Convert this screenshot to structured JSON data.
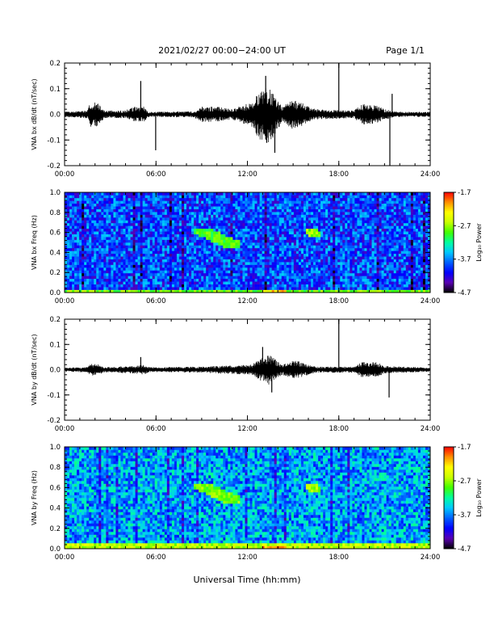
{
  "header": {
    "date_range": "2021/02/27  00:00−24:00 UT",
    "page": "Page 1/1"
  },
  "xlabel": "Universal Time (hh:mm)",
  "colors": {
    "trace": "#000000",
    "spectrogram_colormap": [
      "#000000",
      "#5a00b4",
      "#0000ff",
      "#0060ff",
      "#00c8ff",
      "#00ffa0",
      "#40ff00",
      "#c8ff00",
      "#ffff00",
      "#ff9000",
      "#ff0000"
    ]
  },
  "chart_data": [
    {
      "type": "line",
      "name": "bx-waveform",
      "ylabel": "VNA bx dB/dt (nT/sec)",
      "xlim": [
        "00:00",
        "24:00"
      ],
      "xticks": [
        "00:00",
        "06:00",
        "12:00",
        "18:00",
        "24:00"
      ],
      "ylim": [
        -0.2,
        0.2
      ],
      "yticks": [
        "-0.2",
        "-0.1",
        "0.0",
        "0.1",
        "0.2"
      ],
      "baseline_noise": 0.01,
      "envelope": [
        {
          "t": 0.0,
          "pos": 0.01,
          "neg": 0.01
        },
        {
          "t": 1.5,
          "pos": 0.015,
          "neg": 0.015
        },
        {
          "t": 1.7,
          "pos": 0.05,
          "neg": 0.05
        },
        {
          "t": 2.3,
          "pos": 0.045,
          "neg": 0.045
        },
        {
          "t": 2.6,
          "pos": 0.015,
          "neg": 0.015
        },
        {
          "t": 4.0,
          "pos": 0.015,
          "neg": 0.015
        },
        {
          "t": 4.5,
          "pos": 0.03,
          "neg": 0.03
        },
        {
          "t": 5.2,
          "pos": 0.03,
          "neg": 0.03
        },
        {
          "t": 5.5,
          "pos": 0.01,
          "neg": 0.01
        },
        {
          "t": 8.5,
          "pos": 0.012,
          "neg": 0.012
        },
        {
          "t": 9.0,
          "pos": 0.03,
          "neg": 0.03
        },
        {
          "t": 10.0,
          "pos": 0.03,
          "neg": 0.03
        },
        {
          "t": 11.0,
          "pos": 0.02,
          "neg": 0.02
        },
        {
          "t": 12.3,
          "pos": 0.05,
          "neg": 0.05
        },
        {
          "t": 12.8,
          "pos": 0.09,
          "neg": 0.1
        },
        {
          "t": 13.4,
          "pos": 0.11,
          "neg": 0.12
        },
        {
          "t": 13.9,
          "pos": 0.06,
          "neg": 0.07
        },
        {
          "t": 14.3,
          "pos": 0.03,
          "neg": 0.03
        },
        {
          "t": 15.0,
          "pos": 0.06,
          "neg": 0.06
        },
        {
          "t": 15.8,
          "pos": 0.04,
          "neg": 0.04
        },
        {
          "t": 16.5,
          "pos": 0.02,
          "neg": 0.02
        },
        {
          "t": 19.0,
          "pos": 0.015,
          "neg": 0.015
        },
        {
          "t": 19.5,
          "pos": 0.04,
          "neg": 0.04
        },
        {
          "t": 20.5,
          "pos": 0.035,
          "neg": 0.035
        },
        {
          "t": 21.0,
          "pos": 0.02,
          "neg": 0.02
        },
        {
          "t": 22.0,
          "pos": 0.01,
          "neg": 0.01
        },
        {
          "t": 24.0,
          "pos": 0.01,
          "neg": 0.01
        }
      ],
      "spikes": [
        {
          "t": 5.0,
          "value": 0.13
        },
        {
          "t": 5.98,
          "value": -0.14
        },
        {
          "t": 13.2,
          "value": 0.15
        },
        {
          "t": 13.8,
          "value": -0.15
        },
        {
          "t": 18.0,
          "value": 0.22
        },
        {
          "t": 21.35,
          "value": -0.2
        },
        {
          "t": 21.5,
          "value": 0.08
        }
      ]
    },
    {
      "type": "heatmap",
      "name": "bx-spectrogram",
      "ylabel": "VNA bx Freq (Hz)",
      "xlim": [
        "00:00",
        "24:00"
      ],
      "xticks": [
        "00:00",
        "06:00",
        "12:00",
        "18:00",
        "24:00"
      ],
      "ylim": [
        0.0,
        1.0
      ],
      "yticks": [
        "0.0",
        "0.2",
        "0.4",
        "0.6",
        "0.8",
        "1.0"
      ],
      "colorbar": {
        "label": "Log₁₀ Power",
        "range": [
          -4.7,
          -1.7
        ],
        "ticks": [
          "-1.7",
          "-2.7",
          "-3.7",
          "-4.7"
        ]
      },
      "background_level": -3.9,
      "features": [
        {
          "t0": 0.0,
          "t1": 24.0,
          "f0": 0.0,
          "f1": 0.04,
          "level": -2.8
        },
        {
          "t0": 13.0,
          "t1": 14.5,
          "f0": 0.0,
          "f1": 0.03,
          "level": -2.2
        },
        {
          "t0": 8.5,
          "t1": 11.5,
          "f0": 0.45,
          "f1": 0.65,
          "level": -2.9
        },
        {
          "t0": 15.8,
          "t1": 16.8,
          "f0": 0.55,
          "f1": 0.65,
          "level": -2.7
        }
      ]
    },
    {
      "type": "line",
      "name": "by-waveform",
      "ylabel": "VNA by dB/dt (nT/sec)",
      "xlim": [
        "00:00",
        "24:00"
      ],
      "xticks": [
        "00:00",
        "06:00",
        "12:00",
        "18:00",
        "24:00"
      ],
      "ylim": [
        -0.2,
        0.2
      ],
      "yticks": [
        "-0.2",
        "-0.1",
        "0.0",
        "0.1",
        "0.2"
      ],
      "baseline_noise": 0.008,
      "envelope": [
        {
          "t": 0.0,
          "pos": 0.008,
          "neg": 0.008
        },
        {
          "t": 1.5,
          "pos": 0.01,
          "neg": 0.01
        },
        {
          "t": 1.7,
          "pos": 0.025,
          "neg": 0.025
        },
        {
          "t": 2.3,
          "pos": 0.02,
          "neg": 0.02
        },
        {
          "t": 2.6,
          "pos": 0.01,
          "neg": 0.01
        },
        {
          "t": 4.5,
          "pos": 0.015,
          "neg": 0.015
        },
        {
          "t": 5.2,
          "pos": 0.02,
          "neg": 0.02
        },
        {
          "t": 5.5,
          "pos": 0.01,
          "neg": 0.01
        },
        {
          "t": 9.0,
          "pos": 0.012,
          "neg": 0.012
        },
        {
          "t": 10.0,
          "pos": 0.015,
          "neg": 0.015
        },
        {
          "t": 12.3,
          "pos": 0.02,
          "neg": 0.02
        },
        {
          "t": 12.8,
          "pos": 0.045,
          "neg": 0.045
        },
        {
          "t": 13.4,
          "pos": 0.06,
          "neg": 0.06
        },
        {
          "t": 13.9,
          "pos": 0.04,
          "neg": 0.04
        },
        {
          "t": 14.3,
          "pos": 0.02,
          "neg": 0.02
        },
        {
          "t": 15.0,
          "pos": 0.04,
          "neg": 0.04
        },
        {
          "t": 15.8,
          "pos": 0.025,
          "neg": 0.025
        },
        {
          "t": 16.5,
          "pos": 0.012,
          "neg": 0.012
        },
        {
          "t": 19.0,
          "pos": 0.012,
          "neg": 0.012
        },
        {
          "t": 19.5,
          "pos": 0.03,
          "neg": 0.03
        },
        {
          "t": 20.5,
          "pos": 0.03,
          "neg": 0.03
        },
        {
          "t": 21.0,
          "pos": 0.015,
          "neg": 0.015
        },
        {
          "t": 24.0,
          "pos": 0.008,
          "neg": 0.008
        }
      ],
      "spikes": [
        {
          "t": 5.0,
          "value": 0.05
        },
        {
          "t": 13.0,
          "value": 0.09
        },
        {
          "t": 13.6,
          "value": -0.09
        },
        {
          "t": 18.0,
          "value": 0.2
        },
        {
          "t": 21.3,
          "value": -0.11
        }
      ]
    },
    {
      "type": "heatmap",
      "name": "by-spectrogram",
      "ylabel": "VNA by Freq (Hz)",
      "xlim": [
        "00:00",
        "24:00"
      ],
      "xticks": [
        "00:00",
        "06:00",
        "12:00",
        "18:00",
        "24:00"
      ],
      "ylim": [
        0.0,
        1.0
      ],
      "yticks": [
        "0.0",
        "0.2",
        "0.4",
        "0.6",
        "0.8",
        "1.0"
      ],
      "colorbar": {
        "label": "Log₁₀ Power",
        "range": [
          -4.7,
          -1.7
        ],
        "ticks": [
          "-1.7",
          "-2.7",
          "-3.7",
          "-4.7"
        ]
      },
      "background_level": -3.6,
      "features": [
        {
          "t0": 0.0,
          "t1": 24.0,
          "f0": 0.0,
          "f1": 0.05,
          "level": -2.6
        },
        {
          "t0": 13.0,
          "t1": 14.5,
          "f0": 0.0,
          "f1": 0.03,
          "level": -2.1
        },
        {
          "t0": 8.5,
          "t1": 11.5,
          "f0": 0.45,
          "f1": 0.65,
          "level": -2.8
        },
        {
          "t0": 15.8,
          "t1": 16.8,
          "f0": 0.55,
          "f1": 0.65,
          "level": -2.7
        }
      ]
    }
  ]
}
